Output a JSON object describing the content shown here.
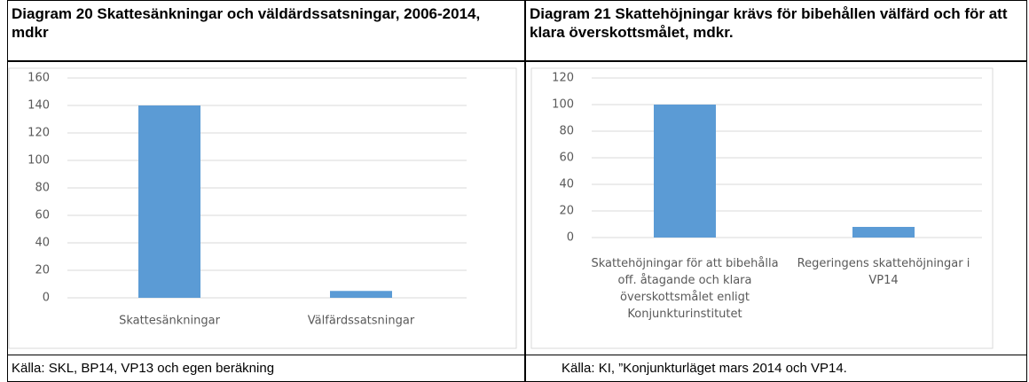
{
  "chart_data": [
    {
      "type": "bar",
      "title": "Diagram 20 Skattesänkningar och väldärdssatsningar, 2006-2014, mdkr",
      "categories": [
        "Skattesänkningar",
        "Välfärdssatsningar"
      ],
      "values": [
        140,
        5
      ],
      "color": "#5b9bd5",
      "ylim": [
        0,
        160
      ],
      "yticks": [
        0,
        20,
        40,
        60,
        80,
        100,
        120,
        140,
        160
      ],
      "grid": true,
      "source": "Källa: SKL, BP14, VP13 och egen beräkning"
    },
    {
      "type": "bar",
      "title": "Diagram 21 Skattehöjningar krävs för bibehållen välfärd och för att klara överskottsmålet, mdkr.",
      "categories": [
        "Skattehöjningar för att bibehålla off. åtagande och klara överskottsmålet enligt Konjunkturinstitutet",
        "Regeringens skattehöjningar i VP14"
      ],
      "values": [
        100,
        8
      ],
      "color": "#5b9bd5",
      "ylim": [
        0,
        120
      ],
      "yticks": [
        0,
        20,
        40,
        60,
        80,
        100,
        120
      ],
      "grid": true,
      "source": "Källa: KI, ”Konjunkturläget mars 2014 och VP14."
    }
  ]
}
